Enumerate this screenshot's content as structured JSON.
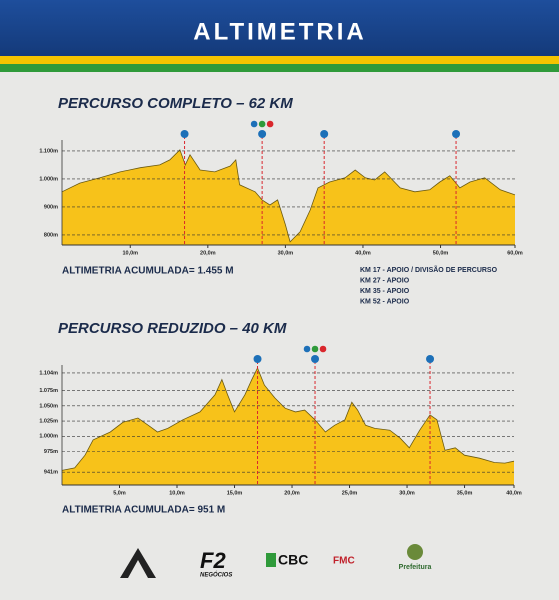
{
  "header": {
    "title": "ALTIMETRIA"
  },
  "chart_data": [
    {
      "type": "area",
      "title": "PERCURSO COMPLETO – 62 KM",
      "color": "#f7c21a",
      "marker_color": "#d9262c",
      "x": [
        1.2,
        3.5,
        6.1,
        8.7,
        11.3,
        13.8,
        15.1,
        16.4,
        17.1,
        17.7,
        19.0,
        20.9,
        22.9,
        23.6,
        24.1,
        26.1,
        27.0,
        28.0,
        29.0,
        30.0,
        30.6,
        31.9,
        33.2,
        34.2,
        35.7,
        37.7,
        39.0,
        40.3,
        41.5,
        42.8,
        44.8,
        46.7,
        48.6,
        49.9,
        51.2,
        52.5,
        53.8,
        55.7,
        57.7,
        59.6
      ],
      "values": [
        954,
        985,
        1004,
        1025,
        1040,
        1050,
        1068,
        1104,
        1050,
        1086,
        1032,
        1025,
        1046,
        1068,
        979,
        954,
        925,
        907,
        925,
        836,
        775,
        811,
        889,
        968,
        989,
        1004,
        1032,
        1004,
        996,
        1025,
        968,
        954,
        961,
        989,
        1011,
        968,
        989,
        1004,
        961,
        943
      ],
      "xlim": [
        1.2,
        59.6
      ],
      "ylim": [
        764,
        1139
      ],
      "xticks": [
        {
          "value": 10,
          "label": "10,0m"
        },
        {
          "value": 20,
          "label": "20,0m"
        },
        {
          "value": 30,
          "label": "30,0m"
        },
        {
          "value": 40,
          "label": "40,0m"
        },
        {
          "value": 50,
          "label": "50,0m"
        },
        {
          "value": 60,
          "label": "60,0m"
        }
      ],
      "yticks": [
        {
          "value": 1100,
          "label": "1.100m"
        },
        {
          "value": 1000,
          "label": "1.000m"
        },
        {
          "value": 900,
          "label": "900m"
        },
        {
          "value": 800,
          "label": "800m"
        }
      ],
      "markers": [
        17,
        27,
        35,
        52
      ],
      "annotation": "ALTIMETRIA ACUMULADA= 1.455 M",
      "notes": [
        "KM 17 - APOIO / DIVISÃO DE PERCURSO",
        "KM 27 - APOIO",
        "KM 35 - APOIO",
        "KM 52 - APOIO"
      ]
    },
    {
      "type": "area",
      "title": "PERCURSO REDUZIDO – 40 KM",
      "color": "#f7c21a",
      "marker_color": "#d9262c",
      "x": [
        0,
        1.1,
        2.0,
        2.7,
        4.2,
        5.3,
        6.6,
        7.5,
        8.3,
        9.2,
        10.5,
        12.0,
        13.3,
        13.9,
        14.4,
        15.0,
        15.9,
        16.5,
        17.0,
        17.6,
        18.5,
        19.4,
        20.3,
        21.1,
        22.0,
        22.9,
        23.7,
        24.6,
        25.2,
        25.7,
        26.4,
        27.2,
        28.5,
        29.4,
        30.2,
        31.1,
        32.0,
        32.6,
        33.3,
        34.2,
        35.0,
        36.3,
        37.6,
        38.5,
        39.3
      ],
      "values": [
        944,
        948,
        969,
        994,
        1007,
        1023,
        1030,
        1018,
        1007,
        1013,
        1027,
        1040,
        1068,
        1093,
        1068,
        1040,
        1068,
        1093,
        1112,
        1084,
        1063,
        1046,
        1040,
        1043,
        1027,
        1007,
        1018,
        1027,
        1056,
        1043,
        1018,
        1013,
        1010,
        997,
        981,
        1010,
        1035,
        1027,
        977,
        981,
        969,
        964,
        957,
        956,
        959
      ],
      "xlim": [
        0,
        39.3
      ],
      "ylim": [
        920,
        1117
      ],
      "xticks": [
        {
          "value": 5,
          "label": "5,0m"
        },
        {
          "value": 10,
          "label": "10,0m"
        },
        {
          "value": 15,
          "label": "15,0m"
        },
        {
          "value": 20,
          "label": "20,0m"
        },
        {
          "value": 25,
          "label": "25,0m"
        },
        {
          "value": 30,
          "label": "30,0m"
        },
        {
          "value": 35,
          "label": "35,0m"
        },
        {
          "value": 40,
          "label": "40,0m"
        }
      ],
      "yticks": [
        {
          "value": 1104,
          "label": "1.104m"
        },
        {
          "value": 1075,
          "label": "1.075m"
        },
        {
          "value": 1050,
          "label": "1.050m"
        },
        {
          "value": 1025,
          "label": "1.025m"
        },
        {
          "value": 1000,
          "label": "1.000m"
        },
        {
          "value": 975,
          "label": "975m"
        },
        {
          "value": 941,
          "label": "941m"
        }
      ],
      "markers": [
        17,
        22,
        32
      ],
      "annotation": "ALTIMETRIA ACUMULADA= 951 M"
    }
  ],
  "footer": {
    "logos": [
      "F2",
      "NEGÓCIOS",
      "CBC",
      "FMC",
      "Prefeitura"
    ]
  }
}
